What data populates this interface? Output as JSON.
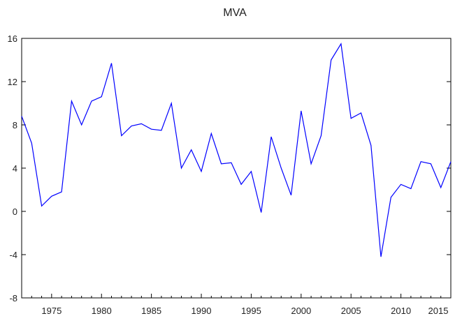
{
  "chart_data": {
    "type": "line",
    "title": "MVA",
    "xlabel": "",
    "ylabel": "",
    "xlim": [
      1972,
      2015
    ],
    "ylim": [
      -8,
      16
    ],
    "yticks": [
      -8,
      -4,
      0,
      4,
      8,
      12,
      16
    ],
    "xticks": [
      1975,
      1980,
      1985,
      1990,
      1995,
      2000,
      2005,
      2010,
      2015
    ],
    "grid": false,
    "legend": "none",
    "line_color": "#0000ff",
    "series": [
      {
        "x": [
          1972,
          1973,
          1974,
          1975,
          1976,
          1977,
          1978,
          1979,
          1980,
          1981,
          1982,
          1983,
          1984,
          1985,
          1986,
          1987,
          1988,
          1989,
          1990,
          1991,
          1992,
          1993,
          1994,
          1995,
          1996,
          1997,
          1998,
          1999,
          2000,
          2001,
          2002,
          2003,
          2004,
          2005,
          2006,
          2007,
          2008,
          2009,
          2010,
          2011,
          2012,
          2013,
          2014,
          2015
        ],
        "values": [
          8.8,
          6.3,
          0.5,
          1.4,
          1.8,
          10.2,
          8.0,
          10.2,
          10.6,
          13.7,
          7.0,
          7.9,
          8.1,
          7.6,
          7.5,
          10.0,
          4.0,
          5.7,
          3.7,
          7.2,
          4.4,
          4.5,
          2.5,
          3.7,
          -0.1,
          6.9,
          4.0,
          1.5,
          9.3,
          4.4,
          7.0,
          14.0,
          15.5,
          8.6,
          9.1,
          6.1,
          -4.2,
          1.3,
          2.5,
          2.1,
          4.6,
          4.4,
          2.2,
          4.6
        ]
      }
    ]
  }
}
